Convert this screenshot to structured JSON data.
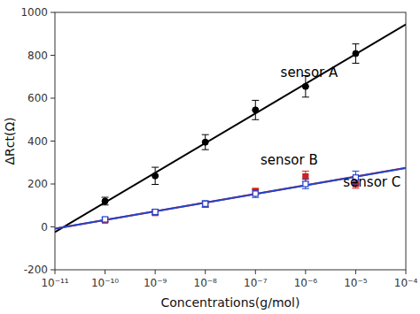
{
  "chart_data": {
    "type": "scatter",
    "xlabel": "Concentrations(g/mol)",
    "ylabel": "ΔRct(Ω)",
    "log": "x",
    "grid": false,
    "xlim": [
      1e-11,
      0.0001
    ],
    "xticks": [
      {
        "value": 1e-11,
        "label": "10⁻¹¹"
      },
      {
        "value": 1e-10,
        "label": "10⁻¹⁰"
      },
      {
        "value": 1e-09,
        "label": "10⁻⁹"
      },
      {
        "value": 1e-08,
        "label": "10⁻⁸"
      },
      {
        "value": 1e-07,
        "label": "10⁻⁷"
      },
      {
        "value": 1e-06,
        "label": "10⁻⁶"
      },
      {
        "value": 1e-05,
        "label": "10⁻⁵"
      },
      {
        "value": 0.0001,
        "label": "10⁻⁴"
      }
    ],
    "ylim": [
      -200,
      1000
    ],
    "yticks": [
      -200,
      0,
      200,
      400,
      600,
      800,
      1000
    ],
    "series": [
      {
        "type": "line",
        "color": "#000000",
        "x": [
          1e-11,
          0.0001
        ],
        "values": [
          -23.933333,
          944.266667
        ]
      },
      {
        "type": "line",
        "color": "#cc2222",
        "x": [
          1e-11,
          0.0001
        ],
        "values": [
          -8.666667,
          275.333333
        ]
      },
      {
        "type": "line",
        "color": "#2244cc",
        "x": [
          1e-11,
          0.0001
        ],
        "values": [
          -8.2,
          274.2
        ]
      },
      {
        "type": "scatter",
        "color": "#000000",
        "marker": "circle",
        "x": [
          1e-10,
          1e-09,
          1e-08,
          1e-07,
          1e-06,
          1e-05
        ],
        "values": [
          120,
          238,
          395,
          545,
          655,
          808
        ],
        "errors": [
          18,
          40,
          35,
          45,
          50,
          45
        ]
      },
      {
        "type": "scatter",
        "color": "#cc2222",
        "marker": "square",
        "x": [
          1e-10,
          1e-09,
          1e-08,
          1e-07,
          1e-06,
          1e-05
        ],
        "values": [
          30,
          65,
          105,
          165,
          235,
          200
        ],
        "errors": [
          8,
          10,
          14,
          15,
          25,
          20
        ]
      },
      {
        "type": "scatter",
        "color": "#2244cc",
        "marker": "open-square",
        "x": [
          1e-10,
          1e-09,
          1e-08,
          1e-07,
          1e-06,
          1e-05
        ],
        "values": [
          35,
          70,
          108,
          155,
          200,
          230
        ],
        "errors": [
          10,
          12,
          14,
          18,
          22,
          30
        ]
      }
    ],
    "annotations": [
      {
        "text": "sensor A",
        "x": 3.1622776601683797e-07,
        "y": 700
      },
      {
        "text": "sensor B",
        "x": 1.2589254117941672e-07,
        "y": 290
      },
      {
        "text": "sensor C",
        "x": 5.623413251903491e-06,
        "y": 188
      }
    ]
  }
}
